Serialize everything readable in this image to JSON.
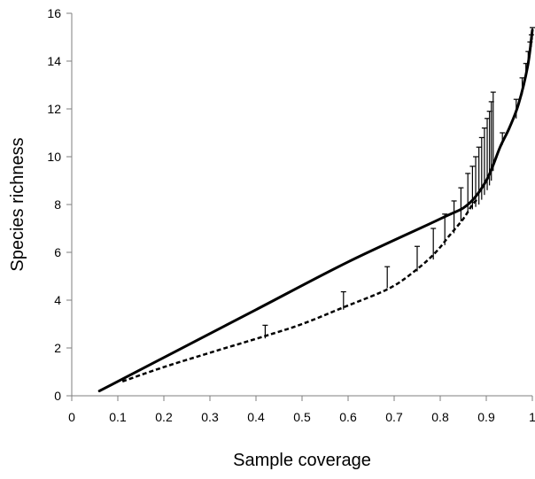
{
  "chart_data": {
    "type": "line",
    "xlabel": "Sample coverage",
    "ylabel": "Species richness",
    "xlim": [
      0,
      1
    ],
    "ylim": [
      0,
      16
    ],
    "x_ticks": [
      "0",
      "0.1",
      "0.2",
      "0.3",
      "0.4",
      "0.5",
      "0.6",
      "0.7",
      "0.8",
      "0.9",
      "1"
    ],
    "y_ticks": [
      "0",
      "2",
      "4",
      "6",
      "8",
      "10",
      "12",
      "14",
      "16"
    ],
    "grid": false,
    "series": [
      {
        "style": "solid",
        "x": [
          0.06,
          0.2,
          0.4,
          0.6,
          0.8,
          0.86,
          0.9,
          0.93,
          0.95,
          0.97,
          0.99,
          1.0
        ],
        "y": [
          0.2,
          1.6,
          3.6,
          5.6,
          7.4,
          8.0,
          9.0,
          10.4,
          11.2,
          12.2,
          13.8,
          15.3
        ]
      },
      {
        "style": "dashed",
        "x": [
          0.11,
          0.2,
          0.3,
          0.42,
          0.5,
          0.59,
          0.69,
          0.75,
          0.79,
          0.82,
          0.85,
          0.87,
          0.88
        ],
        "y": [
          0.6,
          1.2,
          1.8,
          2.5,
          3.0,
          3.7,
          4.5,
          5.3,
          6.0,
          6.7,
          7.4,
          8.0,
          8.2
        ]
      }
    ],
    "error_bars": [
      {
        "x": 0.42,
        "low": 2.4,
        "high": 2.95
      },
      {
        "x": 0.59,
        "low": 3.6,
        "high": 4.35
      },
      {
        "x": 0.685,
        "low": 4.5,
        "high": 5.4
      },
      {
        "x": 0.75,
        "low": 5.2,
        "high": 6.25
      },
      {
        "x": 0.785,
        "low": 5.7,
        "high": 7.0
      },
      {
        "x": 0.81,
        "low": 6.3,
        "high": 7.6
      },
      {
        "x": 0.83,
        "low": 6.8,
        "high": 8.15
      },
      {
        "x": 0.845,
        "low": 7.3,
        "high": 8.7
      },
      {
        "x": 0.86,
        "low": 7.7,
        "high": 9.3
      },
      {
        "x": 0.87,
        "low": 7.8,
        "high": 9.6
      },
      {
        "x": 0.877,
        "low": 7.9,
        "high": 10.0
      },
      {
        "x": 0.884,
        "low": 8.0,
        "high": 10.4
      },
      {
        "x": 0.89,
        "low": 8.2,
        "high": 10.8
      },
      {
        "x": 0.896,
        "low": 8.4,
        "high": 11.2
      },
      {
        "x": 0.902,
        "low": 8.6,
        "high": 11.6
      },
      {
        "x": 0.907,
        "low": 8.8,
        "high": 11.9
      },
      {
        "x": 0.911,
        "low": 9.0,
        "high": 12.3
      },
      {
        "x": 0.915,
        "low": 9.4,
        "high": 12.7
      },
      {
        "x": 0.935,
        "low": 10.5,
        "high": 11.0
      },
      {
        "x": 0.965,
        "low": 11.6,
        "high": 12.4
      },
      {
        "x": 0.978,
        "low": 12.6,
        "high": 13.3
      },
      {
        "x": 0.986,
        "low": 13.3,
        "high": 13.9
      },
      {
        "x": 0.991,
        "low": 13.8,
        "high": 14.4
      },
      {
        "x": 0.995,
        "low": 14.2,
        "high": 14.8
      },
      {
        "x": 0.998,
        "low": 14.6,
        "high": 15.1
      },
      {
        "x": 1.0,
        "low": 14.9,
        "high": 15.4
      }
    ]
  }
}
